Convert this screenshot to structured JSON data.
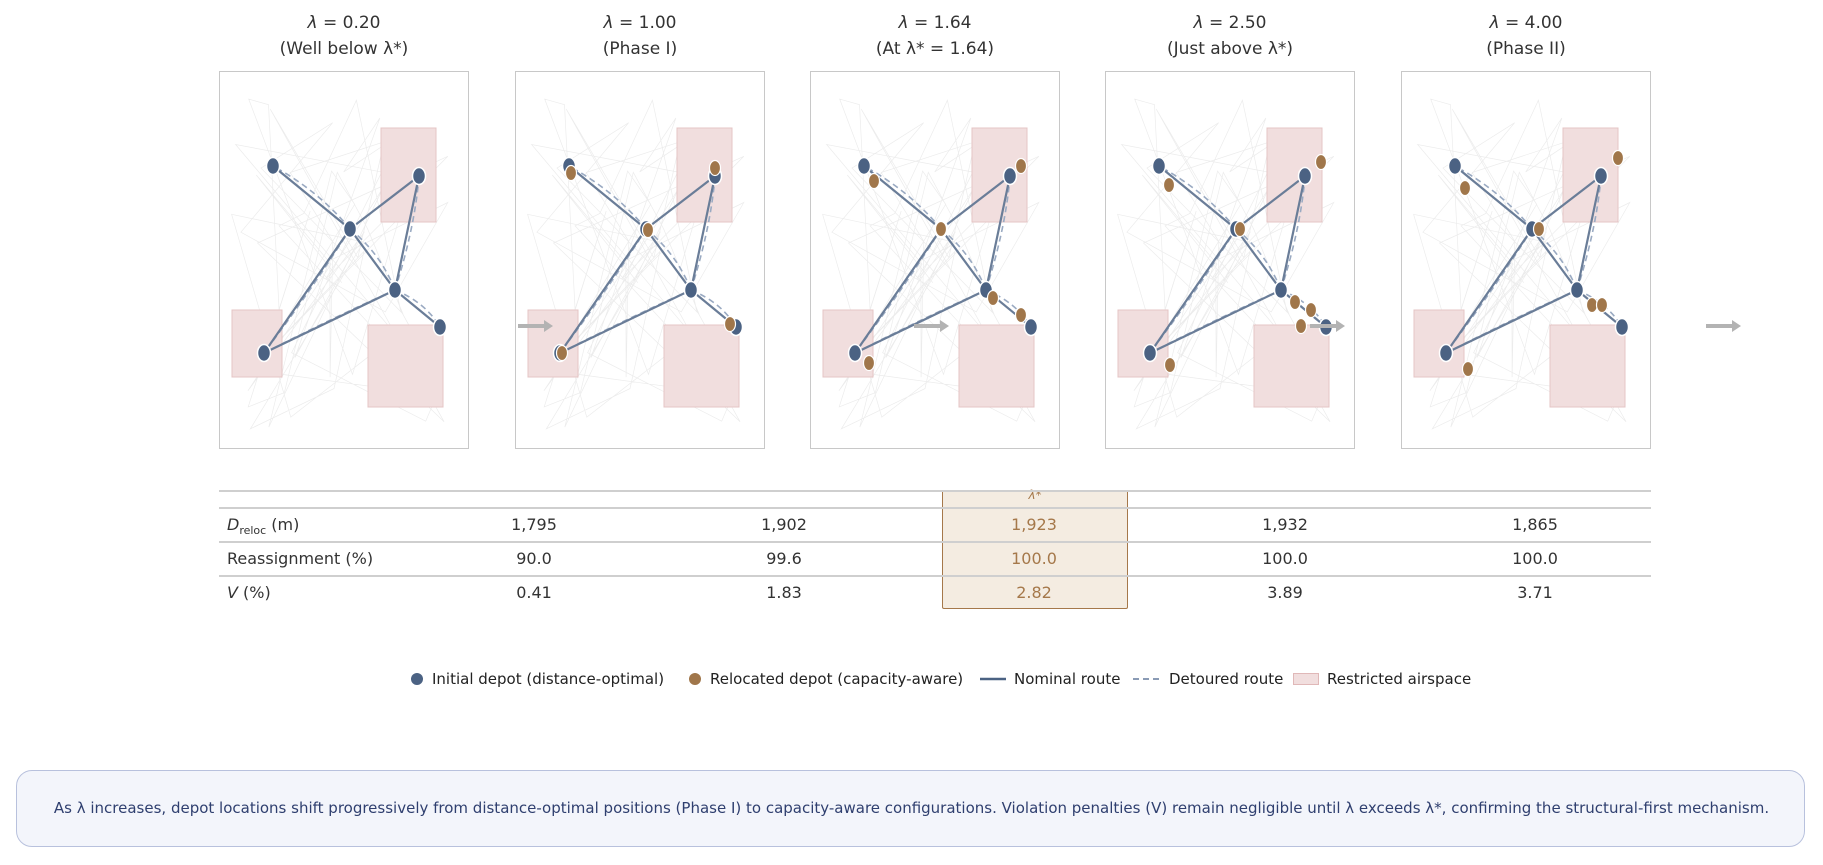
{
  "colors": {
    "initial_depot": "#4b6283",
    "relocated_depot": "#a0764a",
    "route": "#6a7d98",
    "restricted": "#f1dede",
    "highlight": "#a5784a",
    "note_text": "#2f3f6f"
  },
  "panels": [
    {
      "lambda": "0.20",
      "subtitle": "(Well below λ*)"
    },
    {
      "lambda": "1.00",
      "subtitle": "(Phase I)"
    },
    {
      "lambda": "1.64",
      "subtitle": "(At λ* = 1.64)"
    },
    {
      "lambda": "2.50",
      "subtitle": "(Just above λ*)"
    },
    {
      "lambda": "4.00",
      "subtitle": "(Phase II)"
    }
  ],
  "table": {
    "highlight_label": "λ*",
    "rows": [
      {
        "label": "D_reloc (m)",
        "values": [
          "1,795",
          "1,902",
          "1,923",
          "1,932",
          "1,865"
        ]
      },
      {
        "label": "Reassignment  (%)",
        "values": [
          "90.0",
          "99.6",
          "100.0",
          "100.0",
          "100.0"
        ]
      },
      {
        "label": "V (%)",
        "values": [
          "0.41",
          "1.83",
          "2.82",
          "3.89",
          "3.71"
        ]
      }
    ]
  },
  "legend": {
    "initial_depot": "Initial depot  (distance-optimal)",
    "relocated_depot": "Relocated depot  (capacity-aware)",
    "nominal_route": "Nominal route",
    "detoured_route": "Detoured route",
    "restricted_airspace": "Restricted airspace"
  },
  "note": "As λ increases, depot locations shift progressively from distance-optimal positions (Phase I) to capacity-aware configurations.  Violation penalties (V) remain negligible until λ exceeds λ*, confirming the structural-first mechanism."
}
